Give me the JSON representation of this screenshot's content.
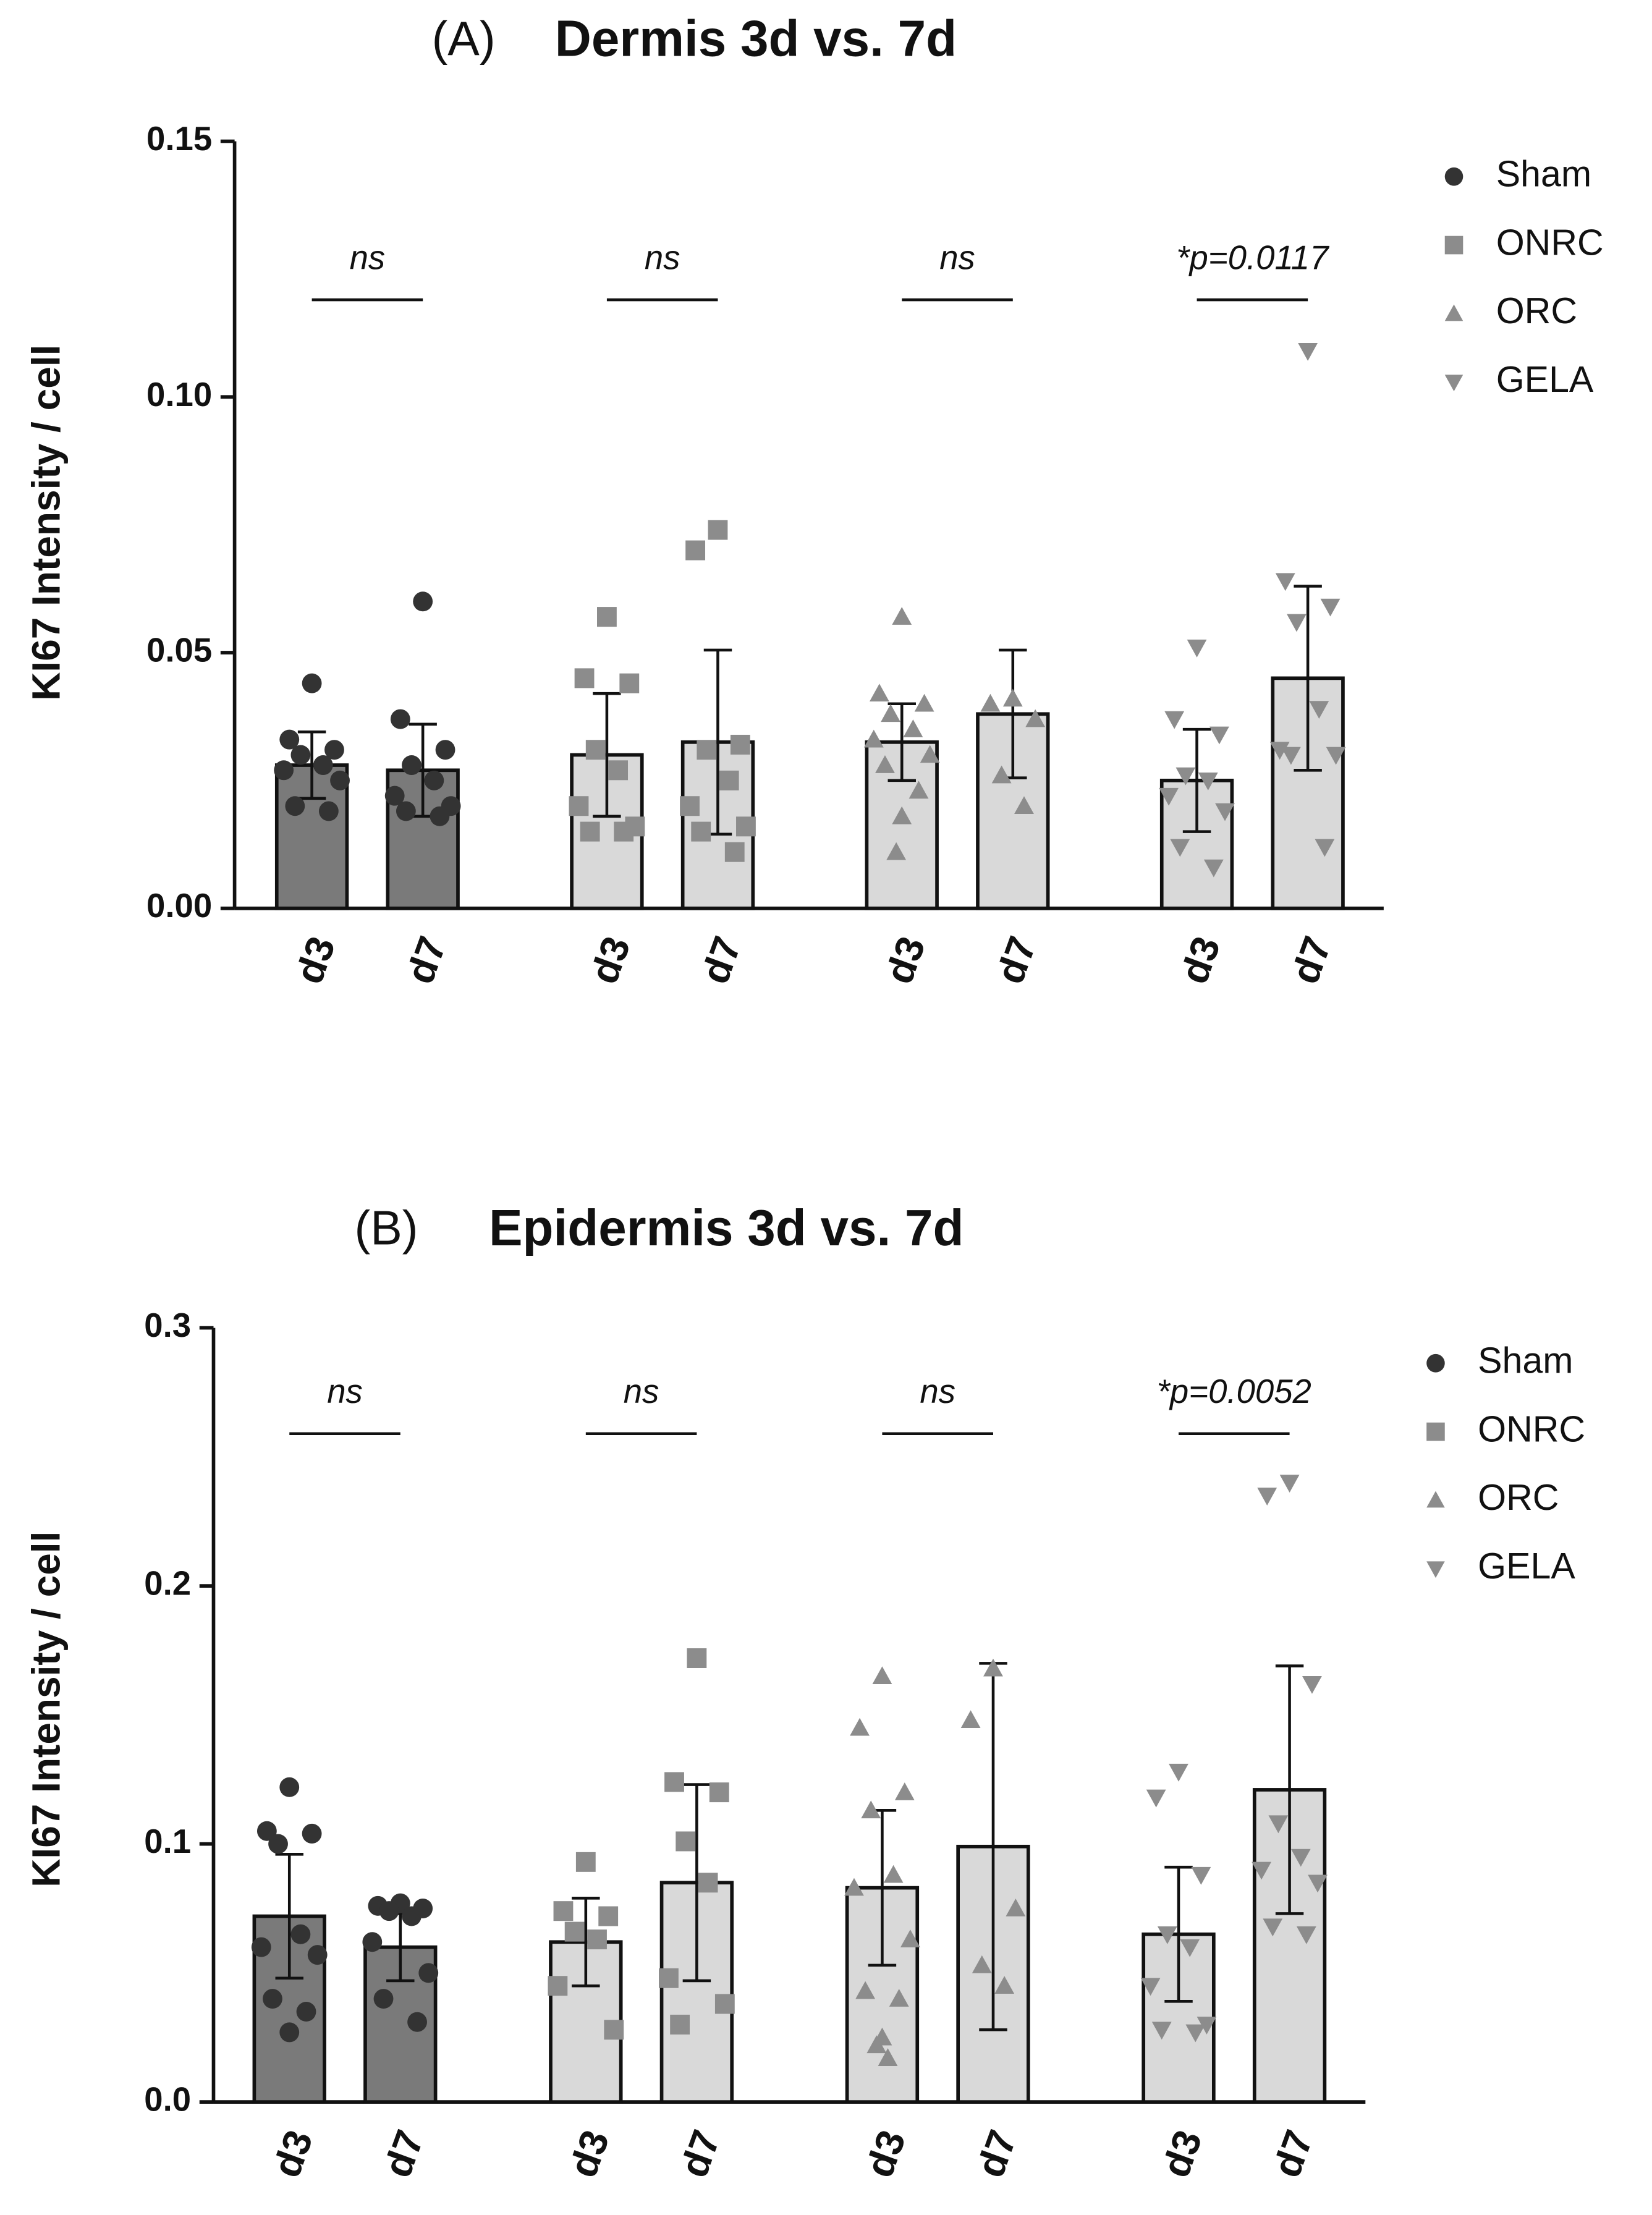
{
  "chart_data": [
    {
      "type": "bar",
      "panel": "(A)",
      "title": "Dermis 3d vs. 7d",
      "ylabel": "KI67 Intensity / cell",
      "categories": [
        "d3",
        "d7"
      ],
      "ylim": [
        0,
        0.15
      ],
      "yticks": [
        {
          "value": 0,
          "label": "0.00"
        },
        {
          "value": 0.05,
          "label": "0.05"
        },
        {
          "value": 0.1,
          "label": "0.10"
        },
        {
          "value": 0.15,
          "label": "0.15"
        }
      ],
      "legend": "upper right",
      "series": [
        {
          "name": "Sham",
          "marker": "circle",
          "color": "#333333",
          "bar_color": "#7a7a7a",
          "annotation": "ns",
          "values": [
            0.028,
            0.027
          ],
          "errors": [
            0.0065,
            0.009
          ],
          "points": [
            [
              0.044,
              0.033,
              0.031,
              0.03,
              0.028,
              0.027,
              0.025,
              0.02,
              0.019
            ],
            [
              0.06,
              0.037,
              0.031,
              0.028,
              0.025,
              0.022,
              0.02,
              0.019,
              0.018
            ]
          ]
        },
        {
          "name": "ONRC",
          "marker": "square",
          "color": "#8c8c8c",
          "bar_color": "#d9d9d9",
          "annotation": "ns",
          "values": [
            0.03,
            0.0325
          ],
          "errors": [
            0.012,
            0.018
          ],
          "points": [
            [
              0.057,
              0.045,
              0.044,
              0.031,
              0.027,
              0.02,
              0.016,
              0.015,
              0.015
            ],
            [
              0.074,
              0.07,
              0.032,
              0.031,
              0.025,
              0.02,
              0.016,
              0.015,
              0.011
            ]
          ]
        },
        {
          "name": "ORC",
          "marker": "triangle-up",
          "color": "#8c8c8c",
          "bar_color": "#d9d9d9",
          "annotation": "ns",
          "values": [
            0.0325,
            0.038
          ],
          "errors": [
            0.0075,
            0.0125
          ],
          "points": [
            [
              0.057,
              0.042,
              0.04,
              0.038,
              0.035,
              0.033,
              0.03,
              0.028,
              0.023,
              0.018,
              0.011
            ],
            [
              0.041,
              0.04,
              0.037,
              0.026,
              0.02
            ]
          ]
        },
        {
          "name": "GELA",
          "marker": "triangle-down",
          "color": "#8c8c8c",
          "bar_color": "#d9d9d9",
          "annotation": "*p=0.0117",
          "values": [
            0.025,
            0.045
          ],
          "errors": [
            0.01,
            0.018
          ],
          "points": [
            [
              0.051,
              0.037,
              0.034,
              0.026,
              0.025,
              0.022,
              0.019,
              0.012,
              0.008
            ],
            [
              0.109,
              0.064,
              0.059,
              0.056,
              0.039,
              0.031,
              0.03,
              0.03,
              0.012
            ]
          ]
        }
      ]
    },
    {
      "type": "bar",
      "panel": "(B)",
      "title": "Epidermis 3d vs. 7d",
      "ylabel": "KI67 Intensity / cell",
      "categories": [
        "d3",
        "d7"
      ],
      "ylim": [
        0,
        0.3
      ],
      "yticks": [
        {
          "value": 0,
          "label": "0.0"
        },
        0.1,
        0.2,
        0.3
      ],
      "legend": "upper right",
      "series": [
        {
          "name": "Sham",
          "marker": "circle",
          "color": "#333333",
          "bar_color": "#7a7a7a",
          "annotation": "ns",
          "values": [
            0.072,
            0.06
          ],
          "errors": [
            0.024,
            0.013
          ],
          "points": [
            [
              0.122,
              0.105,
              0.104,
              0.1,
              0.065,
              0.06,
              0.057,
              0.04,
              0.035,
              0.027
            ],
            [
              0.077,
              0.076,
              0.075,
              0.074,
              0.072,
              0.062,
              0.05,
              0.04,
              0.031
            ]
          ]
        },
        {
          "name": "ONRC",
          "marker": "square",
          "color": "#8c8c8c",
          "bar_color": "#d9d9d9",
          "annotation": "ns",
          "values": [
            0.062,
            0.085
          ],
          "errors": [
            0.017,
            0.038
          ],
          "points": [
            [
              0.093,
              0.074,
              0.072,
              0.066,
              0.063,
              0.045,
              0.028
            ],
            [
              0.172,
              0.124,
              0.12,
              0.101,
              0.085,
              0.048,
              0.038,
              0.03
            ]
          ]
        },
        {
          "name": "ORC",
          "marker": "triangle-up",
          "color": "#8c8c8c",
          "bar_color": "#d9d9d9",
          "annotation": "ns",
          "values": [
            0.083,
            0.099
          ],
          "errors": [
            0.03,
            0.071
          ],
          "points": [
            [
              0.165,
              0.145,
              0.12,
              0.113,
              0.088,
              0.083,
              0.063,
              0.043,
              0.04,
              0.025,
              0.022,
              0.017
            ],
            [
              0.168,
              0.148,
              0.075,
              0.053,
              0.045
            ]
          ]
        },
        {
          "name": "GELA",
          "marker": "triangle-down",
          "color": "#8c8c8c",
          "bar_color": "#d9d9d9",
          "annotation": "*p=0.0052",
          "values": [
            0.065,
            0.121
          ],
          "errors": [
            0.026,
            0.048
          ],
          "points": [
            [
              0.128,
              0.118,
              0.088,
              0.065,
              0.06,
              0.045,
              0.03,
              0.028,
              0.027
            ],
            [
              0.24,
              0.235,
              0.162,
              0.108,
              0.095,
              0.09,
              0.085,
              0.068,
              0.065
            ]
          ]
        }
      ]
    }
  ]
}
